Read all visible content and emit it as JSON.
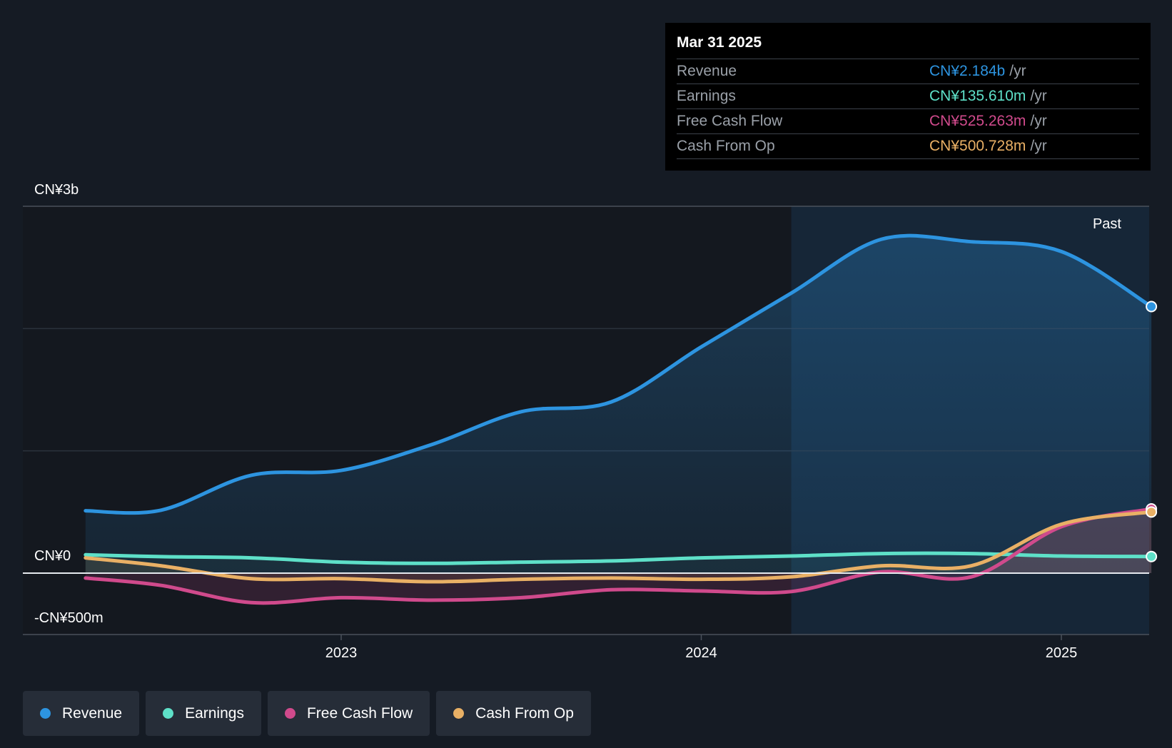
{
  "tooltip": {
    "date": "Mar 31 2025",
    "rows": [
      {
        "label": "Revenue",
        "value": "CN¥2.184b",
        "unit": "/yr",
        "color": "#2d94e0"
      },
      {
        "label": "Earnings",
        "value": "CN¥135.610m",
        "unit": "/yr",
        "color": "#5ee0c8"
      },
      {
        "label": "Free Cash Flow",
        "value": "CN¥525.263m",
        "unit": "/yr",
        "color": "#d04a8c"
      },
      {
        "label": "Cash From Op",
        "value": "CN¥500.728m",
        "unit": "/yr",
        "color": "#e9b065"
      }
    ]
  },
  "legend": [
    {
      "label": "Revenue",
      "color": "#2d94e0"
    },
    {
      "label": "Earnings",
      "color": "#5ee0c8"
    },
    {
      "label": "Free Cash Flow",
      "color": "#d04a8c"
    },
    {
      "label": "Cash From Op",
      "color": "#e9b065"
    }
  ],
  "chart_data": {
    "type": "area",
    "y_tick_labels": [
      "CN¥3b",
      "CN¥0",
      "-CN¥500m"
    ],
    "x_tick_labels": [
      "2023",
      "2024",
      "2025"
    ],
    "past_label": "Past",
    "ylim": [
      -500,
      3000
    ],
    "y_unit": "CN¥ millions",
    "x_range": [
      2022.29,
      2025.25
    ],
    "past_region_start": 2024.25,
    "series": [
      {
        "name": "Revenue",
        "color": "#2d94e0",
        "points": [
          [
            2022.29,
            510
          ],
          [
            2022.5,
            515
          ],
          [
            2022.75,
            800
          ],
          [
            2023.0,
            840
          ],
          [
            2023.25,
            1050
          ],
          [
            2023.5,
            1320
          ],
          [
            2023.75,
            1400
          ],
          [
            2024.0,
            1850
          ],
          [
            2024.25,
            2290
          ],
          [
            2024.5,
            2730
          ],
          [
            2024.75,
            2710
          ],
          [
            2025.0,
            2630
          ],
          [
            2025.25,
            2180
          ]
        ]
      },
      {
        "name": "Earnings",
        "color": "#5ee0c8",
        "points": [
          [
            2022.29,
            150
          ],
          [
            2022.5,
            135
          ],
          [
            2022.75,
            125
          ],
          [
            2023.0,
            90
          ],
          [
            2023.25,
            80
          ],
          [
            2023.5,
            90
          ],
          [
            2023.75,
            100
          ],
          [
            2024.0,
            125
          ],
          [
            2024.25,
            140
          ],
          [
            2024.5,
            160
          ],
          [
            2024.75,
            160
          ],
          [
            2025.0,
            140
          ],
          [
            2025.25,
            136
          ]
        ]
      },
      {
        "name": "Free Cash Flow",
        "color": "#d04a8c",
        "points": [
          [
            2022.29,
            -40
          ],
          [
            2022.5,
            -100
          ],
          [
            2022.75,
            -240
          ],
          [
            2023.0,
            -200
          ],
          [
            2023.25,
            -220
          ],
          [
            2023.5,
            -200
          ],
          [
            2023.75,
            -135
          ],
          [
            2024.0,
            -145
          ],
          [
            2024.25,
            -150
          ],
          [
            2024.5,
            10
          ],
          [
            2024.75,
            -30
          ],
          [
            2025.0,
            380
          ],
          [
            2025.25,
            525
          ]
        ]
      },
      {
        "name": "Cash From Op",
        "color": "#e9b065",
        "points": [
          [
            2022.29,
            125
          ],
          [
            2022.5,
            60
          ],
          [
            2022.75,
            -45
          ],
          [
            2023.0,
            -45
          ],
          [
            2023.25,
            -70
          ],
          [
            2023.5,
            -50
          ],
          [
            2023.75,
            -40
          ],
          [
            2024.0,
            -50
          ],
          [
            2024.25,
            -30
          ],
          [
            2024.5,
            60
          ],
          [
            2024.75,
            60
          ],
          [
            2025.0,
            400
          ],
          [
            2025.25,
            500
          ]
        ]
      }
    ]
  }
}
